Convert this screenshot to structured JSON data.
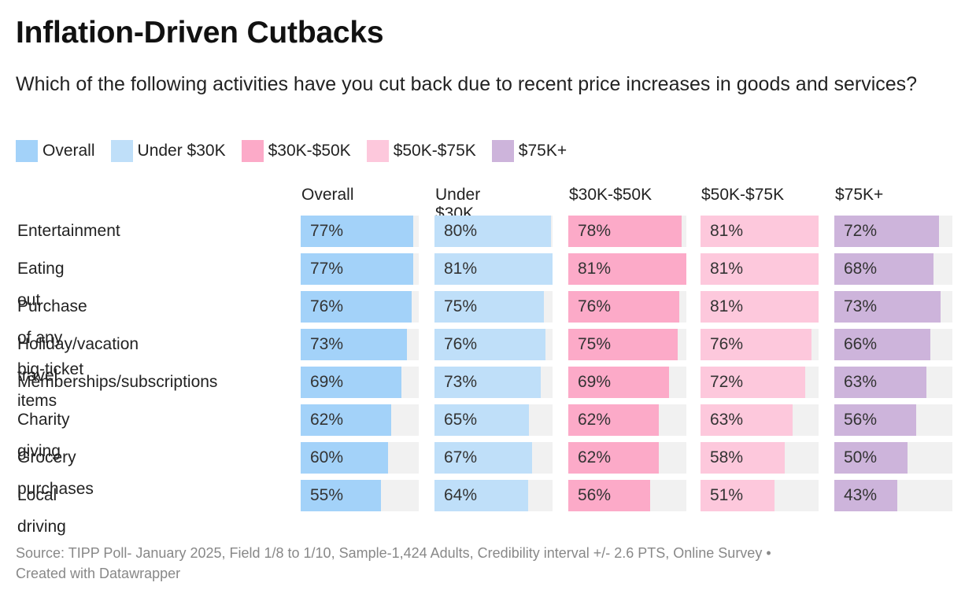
{
  "title": "Inflation-Driven Cutbacks",
  "subtitle": "Which of the following activities have you cut back due to recent price increases in goods and services?",
  "footer": {
    "source": "Source: TIPP Poll- January 2025, Field 1/8 to 1/10, Sample-1,424 Adults, Credibility interval +/- 2.6 PTS, Online Survey •",
    "created": "Created with Datawrapper"
  },
  "colors": {
    "overall": "#a3d2f9",
    "under_30k": "#bfdff9",
    "30k_50k": "#fcaac8",
    "50k_75k": "#fdc8dc",
    "75k_plus": "#cdb4db",
    "track": "#f1f1f1"
  },
  "chart_data": {
    "type": "bar",
    "orientation": "horizontal",
    "value_suffix": "%",
    "xlim": [
      0,
      81
    ],
    "categories": [
      "Entertainment",
      "Eating out",
      "Purchase of any big-ticket items",
      "Holiday/vacation travel",
      "Memberships/subscriptions",
      "Charity giving",
      "Grocery purchases",
      "Local driving"
    ],
    "series": [
      {
        "name": "Overall",
        "color": "#a3d2f9",
        "values": [
          77,
          77,
          76,
          73,
          69,
          62,
          60,
          55
        ]
      },
      {
        "name": "Under $30K",
        "color": "#bfdff9",
        "values": [
          80,
          81,
          75,
          76,
          73,
          65,
          67,
          64
        ]
      },
      {
        "name": "$30K-$50K",
        "color": "#fcaac8",
        "values": [
          78,
          81,
          76,
          75,
          69,
          62,
          62,
          56
        ]
      },
      {
        "name": "$50K-$75K",
        "color": "#fdc8dc",
        "values": [
          81,
          81,
          81,
          76,
          72,
          63,
          58,
          51
        ]
      },
      {
        "name": "$75K+",
        "color": "#cdb4db",
        "values": [
          72,
          68,
          73,
          66,
          63,
          56,
          50,
          43
        ]
      }
    ],
    "legend_position": "top-left"
  }
}
